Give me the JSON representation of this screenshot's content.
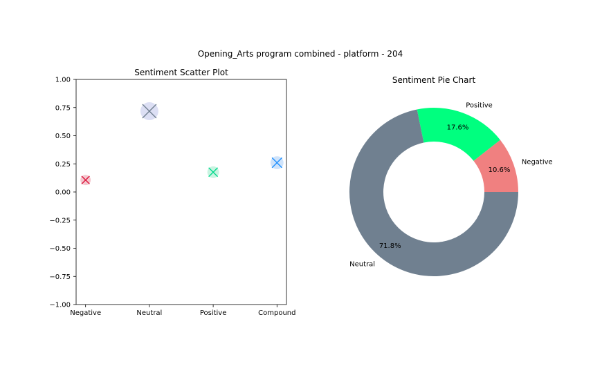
{
  "suptitle": "Opening_Arts program combined - platform - 204",
  "chart_data": [
    {
      "type": "scatter",
      "title": "Sentiment Scatter Plot",
      "categories": [
        "Negative",
        "Neutral",
        "Positive",
        "Compound"
      ],
      "values": [
        0.106,
        0.718,
        0.176,
        0.26
      ],
      "ylim": [
        -1.0,
        1.0
      ],
      "yticks": [
        "1.00",
        "0.75",
        "0.50",
        "0.25",
        "0.00",
        "−0.25",
        "−0.50",
        "−0.75",
        "−1.00"
      ],
      "marker": "x",
      "colors": [
        "#dc143c",
        "#708090",
        "#00d98c",
        "#1e90ff"
      ],
      "halo_colors": [
        "#f4c8cf",
        "#dcdff4",
        "#c8f4e1",
        "#cfe3fa"
      ],
      "grid": false
    },
    {
      "type": "pie",
      "title": "Sentiment Pie Chart",
      "donut": true,
      "slices": [
        {
          "label": "Negative",
          "value": 10.6,
          "pct_label": "10.6%",
          "color": "#f08080"
        },
        {
          "label": "Positive",
          "value": 17.6,
          "pct_label": "17.6%",
          "color": "#00ff7f"
        },
        {
          "label": "Neutral",
          "value": 71.8,
          "pct_label": "71.8%",
          "color": "#708090"
        }
      ]
    }
  ]
}
